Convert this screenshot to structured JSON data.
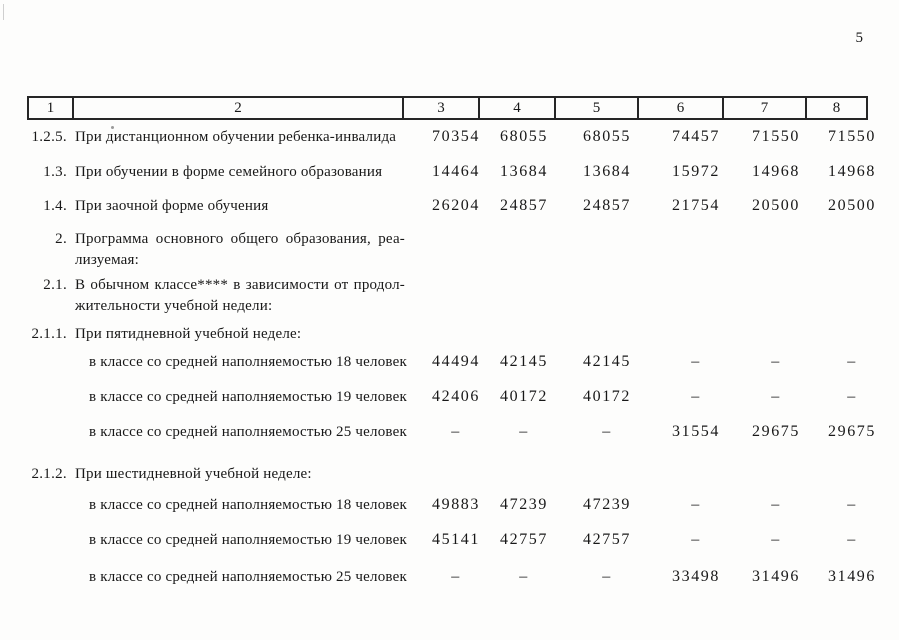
{
  "page": {
    "number": "5"
  },
  "header": {
    "columns": [
      "1",
      "2",
      "3",
      "4",
      "5",
      "6",
      "7",
      "8"
    ]
  },
  "table": {
    "rows": [
      {
        "num": "1.2.5.",
        "label": "При дистанционном обучении ребенка-инвалида",
        "label2": "",
        "indent": false,
        "values": [
          "70354",
          "68055",
          "68055",
          "74457",
          "71550",
          "71550"
        ]
      },
      {
        "num": "1.3.",
        "label": "При обучении в форме семейного образования",
        "label2": "",
        "indent": false,
        "values": [
          "14464",
          "13684",
          "13684",
          "15972",
          "14968",
          "14968"
        ]
      },
      {
        "num": "1.4.",
        "label": "При заочной форме обучения",
        "label2": "",
        "indent": false,
        "values": [
          "26204",
          "24857",
          "24857",
          "21754",
          "20500",
          "20500"
        ]
      },
      {
        "num": "2.",
        "label": "Программа основного общего образования, реа-",
        "label2": "лизуемая:",
        "indent": false,
        "values": []
      },
      {
        "num": "2.1.",
        "label": "В обычном классе**** в зависимости от продол-",
        "label2": "жительности учебной недели:",
        "indent": false,
        "values": []
      },
      {
        "num": "2.1.1.",
        "label": "При пятидневной учебной неделе:",
        "label2": "",
        "indent": false,
        "values": []
      },
      {
        "num": "",
        "label": "в классе со средней наполняемостью 18 человек",
        "label2": "",
        "indent": true,
        "values": [
          "44494",
          "42145",
          "42145",
          "–",
          "–",
          "–"
        ]
      },
      {
        "num": "",
        "label": "в классе со средней наполняемостью 19 человек",
        "label2": "",
        "indent": true,
        "values": [
          "42406",
          "40172",
          "40172",
          "–",
          "–",
          "–"
        ]
      },
      {
        "num": "",
        "label": "в классе со средней наполняемостью 25 человек",
        "label2": "",
        "indent": true,
        "values": [
          "–",
          "–",
          "–",
          "31554",
          "29675",
          "29675"
        ]
      },
      {
        "num": "2.1.2.",
        "label": "При шестидневной учебной неделе:",
        "label2": "",
        "indent": false,
        "values": []
      },
      {
        "num": "",
        "label": "в классе со средней наполняемостью 18 человек",
        "label2": "",
        "indent": true,
        "values": [
          "49883",
          "47239",
          "47239",
          "–",
          "–",
          "–"
        ]
      },
      {
        "num": "",
        "label": "в классе со средней наполняемостью 19 человек",
        "label2": "",
        "indent": true,
        "values": [
          "45141",
          "42757",
          "42757",
          "–",
          "–",
          "–"
        ]
      },
      {
        "num": "",
        "label": "в классе со средней наполняемостью 25 человек",
        "label2": "",
        "indent": true,
        "values": [
          "–",
          "–",
          "–",
          "33498",
          "31496",
          "31496"
        ]
      }
    ]
  }
}
